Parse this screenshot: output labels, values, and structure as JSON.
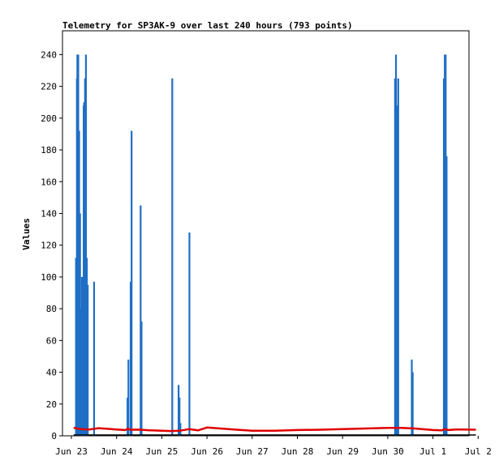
{
  "chart_data": {
    "type": "bar",
    "title": "Telemetry for SP3AK-9 over last 240 hours (793 points)",
    "xlabel": "",
    "ylabel": "Values",
    "x_ticks": [
      "Jun 23",
      "Jun 24",
      "Jun 25",
      "Jun 26",
      "Jun 27",
      "Jun 28",
      "Jun 29",
      "Jun 30",
      "Jul 1",
      "Jul 2"
    ],
    "y_ticks": [
      0,
      20,
      40,
      60,
      80,
      100,
      120,
      140,
      160,
      180,
      200,
      220,
      240
    ],
    "xlim_days": [
      0,
      9
    ],
    "ylim": [
      0,
      255
    ],
    "grid": false,
    "colors": {
      "bars": "#1f6fc5",
      "line": "#e00000",
      "axis": "#000000"
    },
    "series": [
      {
        "type": "bar",
        "values": [
          [
            0.1,
            112
          ],
          [
            0.12,
            225
          ],
          [
            0.13,
            240
          ],
          [
            0.15,
            240
          ],
          [
            0.17,
            192
          ],
          [
            0.19,
            140
          ],
          [
            0.21,
            80
          ],
          [
            0.23,
            100
          ],
          [
            0.25,
            100
          ],
          [
            0.27,
            208
          ],
          [
            0.28,
            210
          ],
          [
            0.3,
            225
          ],
          [
            0.32,
            240
          ],
          [
            0.34,
            112
          ],
          [
            0.36,
            95
          ],
          [
            0.5,
            97
          ],
          [
            1.24,
            24
          ],
          [
            1.26,
            48
          ],
          [
            1.31,
            97
          ],
          [
            1.33,
            192
          ],
          [
            1.53,
            145
          ],
          [
            1.55,
            72
          ],
          [
            2.23,
            225
          ],
          [
            2.37,
            32
          ],
          [
            2.39,
            24
          ],
          [
            2.41,
            8
          ],
          [
            2.61,
            128
          ],
          [
            7.16,
            225
          ],
          [
            7.18,
            240
          ],
          [
            7.21,
            208
          ],
          [
            7.23,
            225
          ],
          [
            7.53,
            48
          ],
          [
            7.55,
            40
          ],
          [
            8.24,
            225
          ],
          [
            8.26,
            240
          ],
          [
            8.28,
            240
          ],
          [
            8.3,
            176
          ]
        ]
      },
      {
        "type": "line",
        "points": [
          [
            0.05,
            5.1
          ],
          [
            0.2,
            4.2
          ],
          [
            0.4,
            4.0
          ],
          [
            0.6,
            4.8
          ],
          [
            0.8,
            4.4
          ],
          [
            1.0,
            4.0
          ],
          [
            1.2,
            3.6
          ],
          [
            1.25,
            4.6
          ],
          [
            1.3,
            3.8
          ],
          [
            1.5,
            3.9
          ],
          [
            1.7,
            3.5
          ],
          [
            2.0,
            3.2
          ],
          [
            2.2,
            3.0
          ],
          [
            2.4,
            3.2
          ],
          [
            2.6,
            4.2
          ],
          [
            2.8,
            3.4
          ],
          [
            3.0,
            5.2
          ],
          [
            3.3,
            4.6
          ],
          [
            3.6,
            4.0
          ],
          [
            4.0,
            3.2
          ],
          [
            4.5,
            3.2
          ],
          [
            5.0,
            3.6
          ],
          [
            5.5,
            3.8
          ],
          [
            6.0,
            4.2
          ],
          [
            6.5,
            4.6
          ],
          [
            7.0,
            5.0
          ],
          [
            7.3,
            5.0
          ],
          [
            7.6,
            4.6
          ],
          [
            8.0,
            3.6
          ],
          [
            8.2,
            3.4
          ],
          [
            8.25,
            4.2
          ],
          [
            8.35,
            3.6
          ],
          [
            8.5,
            4.0
          ],
          [
            8.7,
            4.0
          ],
          [
            8.95,
            3.8
          ]
        ]
      }
    ]
  }
}
